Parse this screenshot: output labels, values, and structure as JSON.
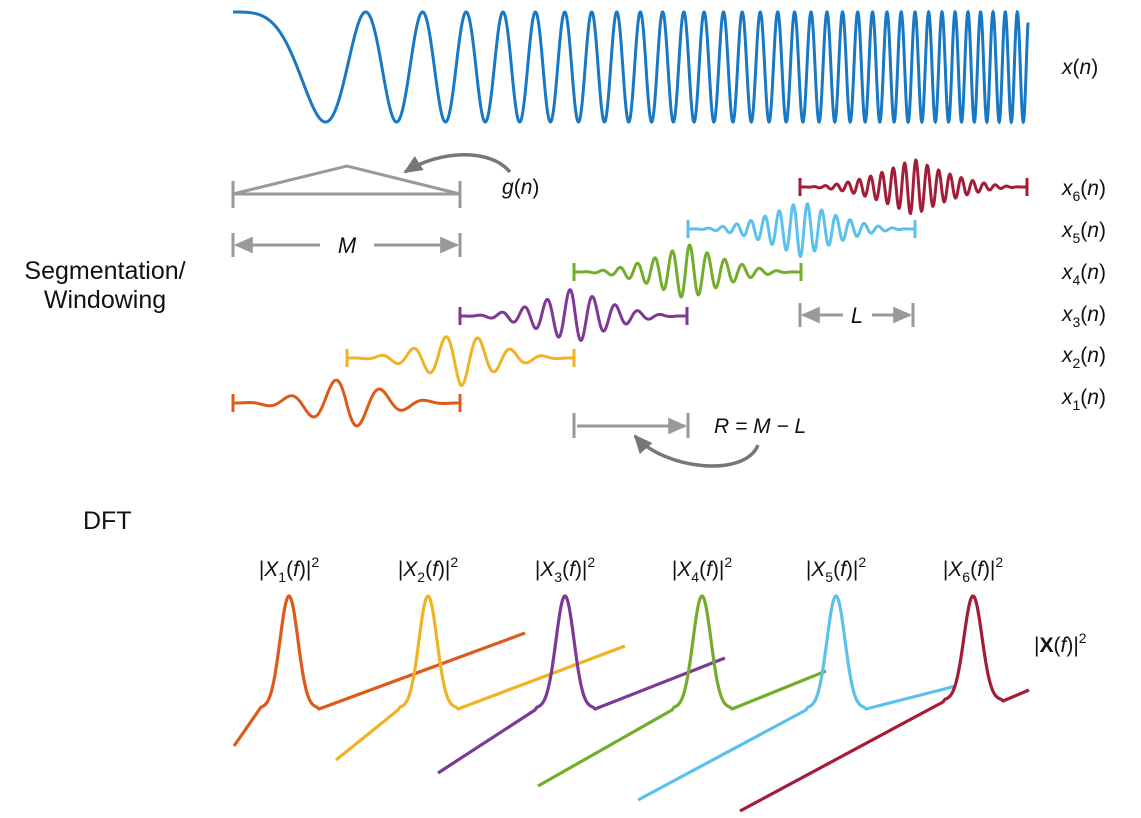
{
  "section_labels": {
    "segmentation_line1": "Segmentation/",
    "segmentation_line2": "Windowing",
    "dft": "DFT"
  },
  "signal": {
    "name": "x",
    "arg": "n"
  },
  "window": {
    "name": "g",
    "arg": "n"
  },
  "window_length_label": "M",
  "overlap_label": "L",
  "hop_equation": "R = M − L",
  "total_spectrum_label": {
    "bold": "X",
    "arg": "f",
    "exp": "2"
  },
  "colors": {
    "signal": "#1878c4",
    "window": "#999999",
    "arrow": "#777777",
    "segments": [
      "#dd5a1a",
      "#f0b325",
      "#7e3896",
      "#74ac2c",
      "#5bc0eb",
      "#a51c38"
    ]
  },
  "segments": [
    {
      "label_base": "x",
      "subscript": "1",
      "arg": "n",
      "spectrum_base": "X",
      "spectrum_arg": "f",
      "spectrum_exp": "2"
    },
    {
      "label_base": "x",
      "subscript": "2",
      "arg": "n",
      "spectrum_base": "X",
      "spectrum_arg": "f",
      "spectrum_exp": "2"
    },
    {
      "label_base": "x",
      "subscript": "3",
      "arg": "n",
      "spectrum_base": "X",
      "spectrum_arg": "f",
      "spectrum_exp": "2"
    },
    {
      "label_base": "x",
      "subscript": "4",
      "arg": "n",
      "spectrum_base": "X",
      "spectrum_arg": "f",
      "spectrum_exp": "2"
    },
    {
      "label_base": "x",
      "subscript": "5",
      "arg": "n",
      "spectrum_base": "X",
      "spectrum_arg": "f",
      "spectrum_exp": "2"
    },
    {
      "label_base": "x",
      "subscript": "6",
      "arg": "n",
      "spectrum_base": "X",
      "spectrum_arg": "f",
      "spectrum_exp": "2"
    }
  ]
}
